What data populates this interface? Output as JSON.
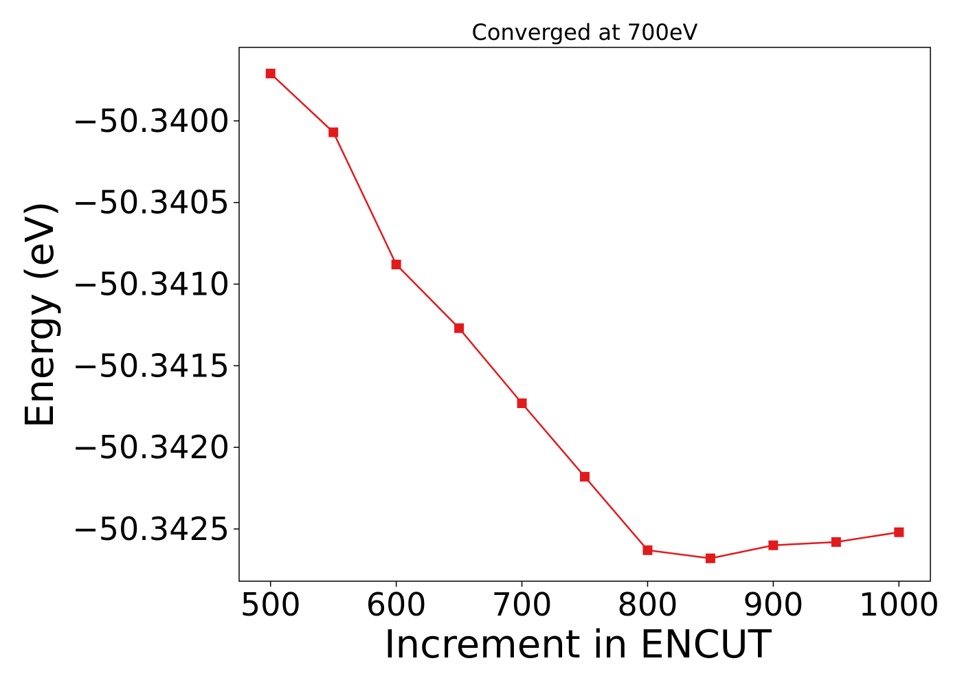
{
  "chart_data": {
    "type": "line",
    "title": "Converged at 700eV",
    "xlabel": "Increment in ENCUT",
    "ylabel": "Energy (eV)",
    "xlim": [
      475,
      1025
    ],
    "ylim": [
      -50.34282,
      -50.33955
    ],
    "x_ticks": [
      500,
      600,
      700,
      800,
      900,
      1000
    ],
    "y_ticks": [
      -50.34,
      -50.3405,
      -50.341,
      -50.3415,
      -50.342,
      -50.3425
    ],
    "x_tick_labels": [
      "500",
      "600",
      "700",
      "800",
      "900",
      "1000"
    ],
    "y_tick_labels": [
      "−50.3400",
      "−50.3405",
      "−50.3410",
      "−50.3415",
      "−50.3420",
      "−50.3425"
    ],
    "grid": false,
    "series": [
      {
        "color": "#e31a1c",
        "marker": "square",
        "x": [
          500,
          550,
          600,
          650,
          700,
          750,
          800,
          850,
          900,
          950,
          1000
        ],
        "y": [
          -50.33971,
          -50.34007,
          -50.34088,
          -50.34127,
          -50.34173,
          -50.34218,
          -50.34263,
          -50.34268,
          -50.3426,
          -50.34258,
          -50.34252
        ]
      }
    ]
  }
}
